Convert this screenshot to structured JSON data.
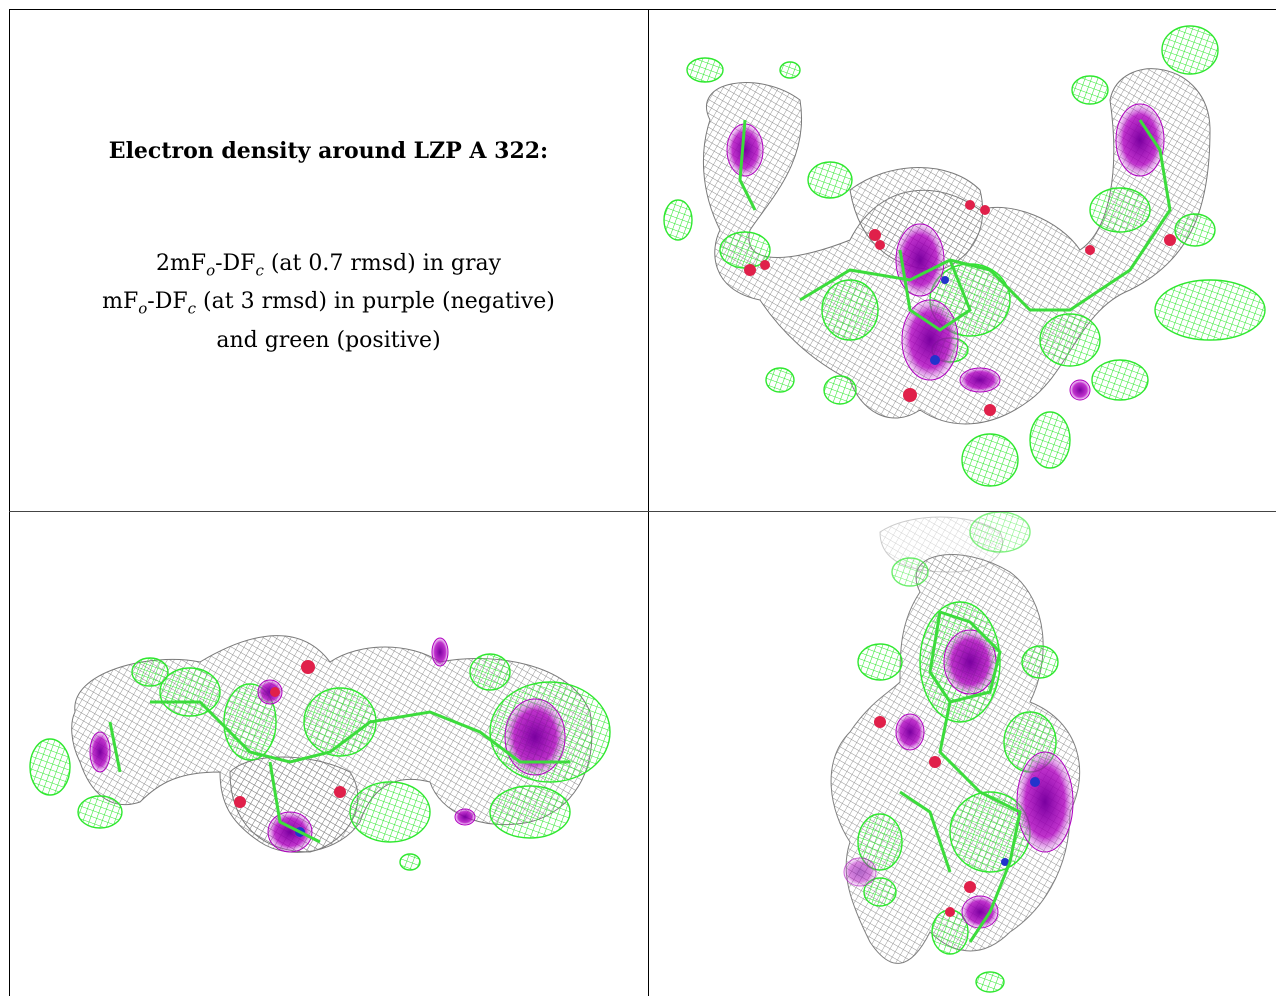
{
  "caption": {
    "title": "Electron density around LZP A 322:",
    "line1": {
      "a": "2mF",
      "b": "o",
      "c": "-DF",
      "d": "c",
      "e": " (at 0.7 rmsd) in gray"
    },
    "line2": {
      "a": "mF",
      "b": "o",
      "c": "-DF",
      "d": "c",
      "e": " (at 3 rmsd) in purple (negative)"
    },
    "line3": "and green (positive)"
  },
  "colors": {
    "gray_mesh": "#9a9a9a",
    "negative_purple": "#b000c0",
    "positive_green": "#33ee33",
    "atom_red": "#e0204a",
    "atom_blue": "#2233cc",
    "border": "#000000"
  },
  "panels": [
    {
      "name": "view-top-right",
      "icon": "electron-density-mesh-view-1"
    },
    {
      "name": "view-bottom-left",
      "icon": "electron-density-mesh-view-2"
    },
    {
      "name": "view-bottom-right",
      "icon": "electron-density-mesh-view-3"
    }
  ]
}
